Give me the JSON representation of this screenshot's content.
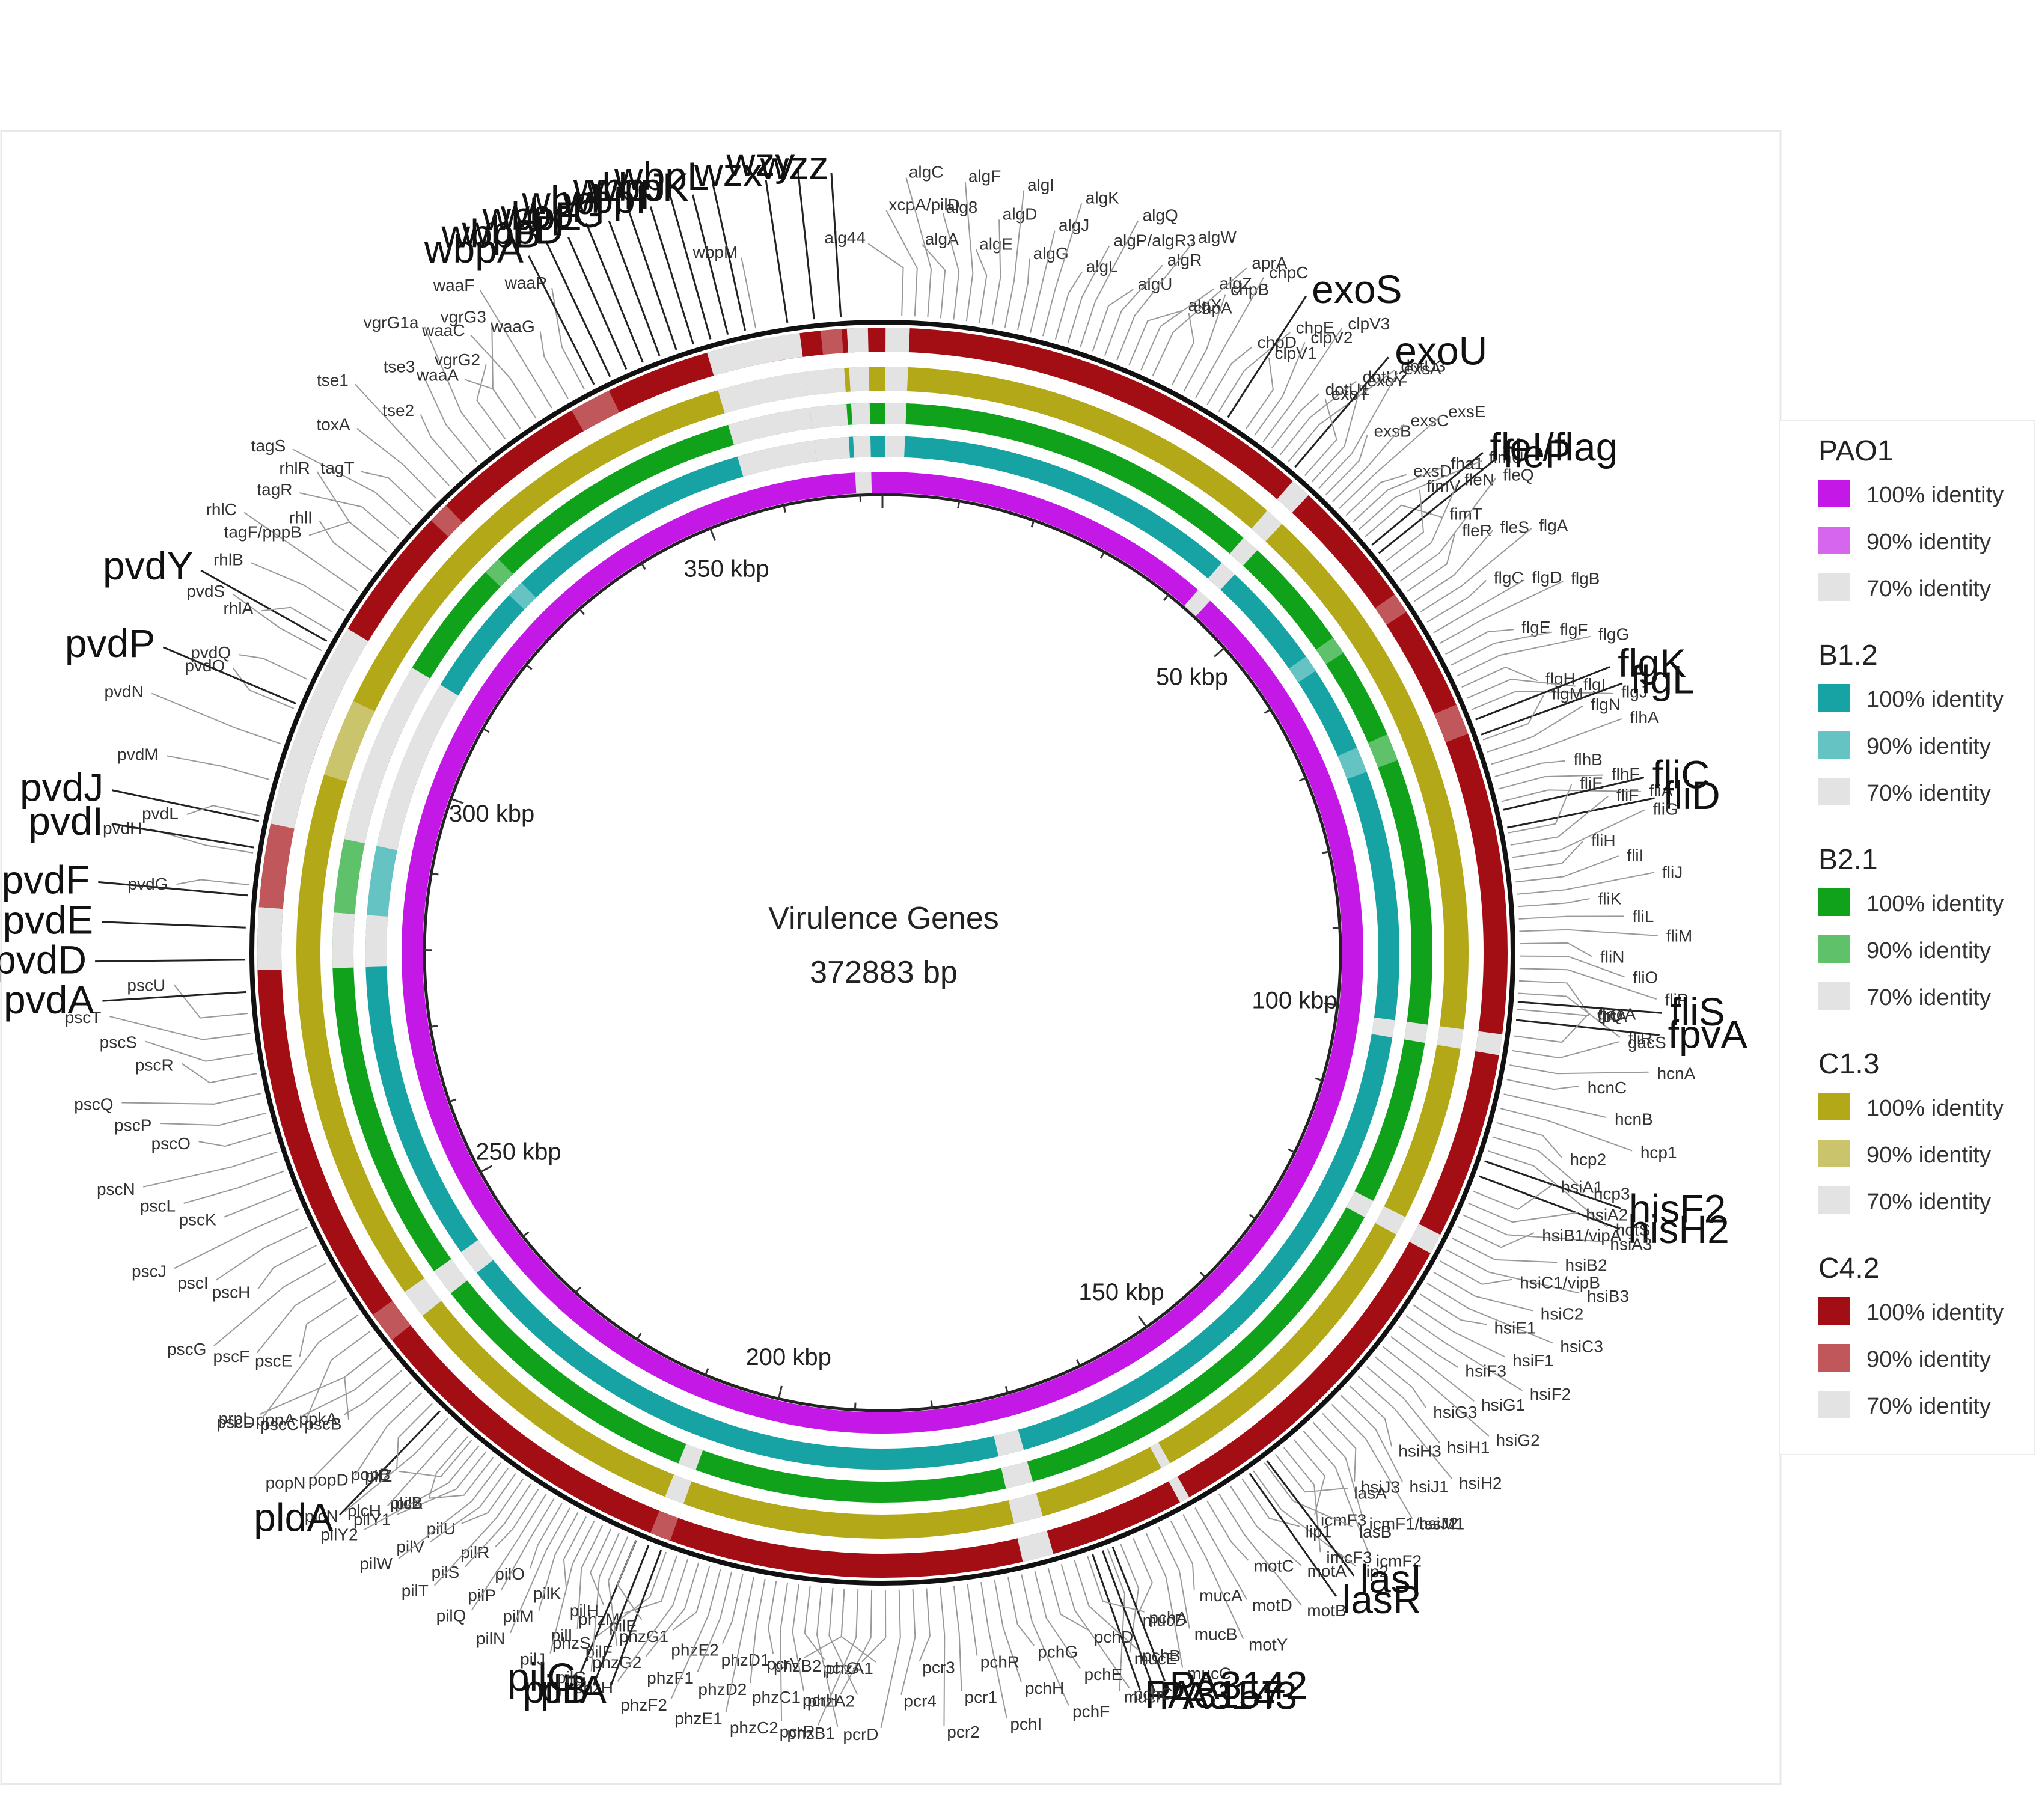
{
  "figure": {
    "center_title": "Virulence Genes",
    "center_subtitle": "372883 bp",
    "genome_length_bp": 372883
  },
  "axis_labels": [
    {
      "kbp": 50,
      "text": "50 kbp"
    },
    {
      "kbp": 100,
      "text": "100 kbp"
    },
    {
      "kbp": 150,
      "text": "150 kbp"
    },
    {
      "kbp": 200,
      "text": "200 kbp"
    },
    {
      "kbp": 250,
      "text": "250 kbp"
    },
    {
      "kbp": 300,
      "text": "300 kbp"
    },
    {
      "kbp": 350,
      "text": "350 kbp"
    }
  ],
  "rings": [
    {
      "name": "C4.2",
      "color": "#a30e14",
      "color90": "#c0575a"
    },
    {
      "name": "C1.3",
      "color": "#b2a818",
      "color90": "#cac46c"
    },
    {
      "name": "B2.1",
      "color": "#10a21b",
      "color90": "#5fc26a"
    },
    {
      "name": "B1.2",
      "color": "#17a3a3",
      "color90": "#66c3c3"
    },
    {
      "name": "PAO1",
      "color": "#c318e6",
      "color90": "#d766ee"
    }
  ],
  "gaps": [
    {
      "ring": "C4.2",
      "start": 0.3,
      "end": 2.6,
      "level": "70"
    },
    {
      "ring": "C1.3",
      "start": 0.3,
      "end": 2.6,
      "level": "70"
    },
    {
      "ring": "B2.1",
      "start": 0.3,
      "end": 2.6,
      "level": "70"
    },
    {
      "ring": "B1.2",
      "start": 0.3,
      "end": 2.6,
      "level": "70"
    },
    {
      "ring": "C4.2",
      "start": 42.5,
      "end": 44.5,
      "level": "70"
    },
    {
      "ring": "C1.3",
      "start": 42.5,
      "end": 44.5,
      "level": "70"
    },
    {
      "ring": "B2.1",
      "start": 42.5,
      "end": 44.5,
      "level": "70"
    },
    {
      "ring": "B1.2",
      "start": 42.5,
      "end": 44.5,
      "level": "70"
    },
    {
      "ring": "PAO1",
      "start": 42.5,
      "end": 44.5,
      "level": "70"
    },
    {
      "ring": "C4.2",
      "start": 57,
      "end": 59,
      "level": "90"
    },
    {
      "ring": "B2.1",
      "start": 57,
      "end": 59,
      "level": "90"
    },
    {
      "ring": "B1.2",
      "start": 57,
      "end": 59,
      "level": "90"
    },
    {
      "ring": "C4.2",
      "start": 69,
      "end": 72,
      "level": "90"
    },
    {
      "ring": "B2.1",
      "start": 69,
      "end": 72,
      "level": "90"
    },
    {
      "ring": "B1.2",
      "start": 69,
      "end": 72,
      "level": "90"
    },
    {
      "ring": "C4.2",
      "start": 101,
      "end": 103,
      "level": "70"
    },
    {
      "ring": "C1.3",
      "start": 101,
      "end": 103,
      "level": "70"
    },
    {
      "ring": "B2.1",
      "start": 101,
      "end": 103,
      "level": "70"
    },
    {
      "ring": "B1.2",
      "start": 101,
      "end": 103,
      "level": "70"
    },
    {
      "ring": "C4.2",
      "start": 121,
      "end": 123,
      "level": "70"
    },
    {
      "ring": "C1.3",
      "start": 121,
      "end": 123,
      "level": "70"
    },
    {
      "ring": "B2.1",
      "start": 121,
      "end": 123,
      "level": "70"
    },
    {
      "ring": "C4.2",
      "start": 156,
      "end": 157,
      "level": "70"
    },
    {
      "ring": "C1.3",
      "start": 156,
      "end": 157,
      "level": "70"
    },
    {
      "ring": "C4.2",
      "start": 170,
      "end": 173,
      "level": "70"
    },
    {
      "ring": "C1.3",
      "start": 170,
      "end": 173,
      "level": "70"
    },
    {
      "ring": "B2.1",
      "start": 170,
      "end": 173,
      "level": "70"
    },
    {
      "ring": "B1.2",
      "start": 170,
      "end": 173,
      "level": "70"
    },
    {
      "ring": "C4.2",
      "start": 207,
      "end": 209,
      "level": "90"
    },
    {
      "ring": "C1.3",
      "start": 207,
      "end": 209,
      "level": "70"
    },
    {
      "ring": "B2.1",
      "start": 207,
      "end": 209,
      "level": "70"
    },
    {
      "ring": "C4.2",
      "start": 240,
      "end": 243,
      "level": "90"
    },
    {
      "ring": "C1.3",
      "start": 240,
      "end": 243,
      "level": "70"
    },
    {
      "ring": "B2.1",
      "start": 240,
      "end": 243,
      "level": "70"
    },
    {
      "ring": "B1.2",
      "start": 240,
      "end": 243,
      "level": "70"
    },
    {
      "ring": "C4.2",
      "start": 278,
      "end": 284,
      "level": "70"
    },
    {
      "ring": "B2.1",
      "start": 278,
      "end": 284,
      "level": "70"
    },
    {
      "ring": "B1.2",
      "start": 278,
      "end": 284,
      "level": "70"
    },
    {
      "ring": "C4.2",
      "start": 284,
      "end": 292,
      "level": "90"
    },
    {
      "ring": "B2.1",
      "start": 284,
      "end": 292,
      "level": "90"
    },
    {
      "ring": "B1.2",
      "start": 284,
      "end": 292,
      "level": "90"
    },
    {
      "ring": "C4.2",
      "start": 292,
      "end": 312,
      "level": "70"
    },
    {
      "ring": "B2.1",
      "start": 292,
      "end": 312,
      "level": "70"
    },
    {
      "ring": "B1.2",
      "start": 292,
      "end": 312,
      "level": "70"
    },
    {
      "ring": "C1.3",
      "start": 298,
      "end": 306,
      "level": "90"
    },
    {
      "ring": "C4.2",
      "start": 325,
      "end": 327,
      "level": "90"
    },
    {
      "ring": "B2.1",
      "start": 325,
      "end": 327,
      "level": "90"
    },
    {
      "ring": "B1.2",
      "start": 325,
      "end": 327,
      "level": "90"
    },
    {
      "ring": "C4.2",
      "start": 342,
      "end": 346,
      "level": "90"
    },
    {
      "ring": "C4.2",
      "start": 356,
      "end": 365,
      "level": "70"
    },
    {
      "ring": "C1.3",
      "start": 356,
      "end": 365,
      "level": "70"
    },
    {
      "ring": "B2.1",
      "start": 356,
      "end": 365,
      "level": "70"
    },
    {
      "ring": "B1.2",
      "start": 356,
      "end": 365,
      "level": "70"
    },
    {
      "ring": "C4.2",
      "start": 367,
      "end": 369,
      "level": "90"
    },
    {
      "ring": "C1.3",
      "start": 365,
      "end": 369,
      "level": "70"
    },
    {
      "ring": "B2.1",
      "start": 365,
      "end": 369,
      "level": "70"
    },
    {
      "ring": "B1.2",
      "start": 365,
      "end": 369,
      "level": "70"
    },
    {
      "ring": "C4.2",
      "start": 369.5,
      "end": 371.5,
      "level": "70"
    },
    {
      "ring": "C1.3",
      "start": 369.5,
      "end": 371.5,
      "level": "70"
    },
    {
      "ring": "B2.1",
      "start": 369.5,
      "end": 371.5,
      "level": "70"
    },
    {
      "ring": "B1.2",
      "start": 369.5,
      "end": 371.5,
      "level": "70"
    },
    {
      "ring": "PAO1",
      "start": 369.5,
      "end": 371.5,
      "level": "70"
    }
  ],
  "legend": [
    {
      "title": "PAO1",
      "entries": [
        {
          "label": "100% identity",
          "color": "#c318e6"
        },
        {
          "label": "90% identity",
          "color": "#d766ee"
        },
        {
          "label": "70% identity",
          "color": "#e3e3e3"
        }
      ]
    },
    {
      "title": "B1.2",
      "entries": [
        {
          "label": "100% identity",
          "color": "#17a3a3"
        },
        {
          "label": "90% identity",
          "color": "#66c3c3"
        },
        {
          "label": "70% identity",
          "color": "#e3e3e3"
        }
      ]
    },
    {
      "title": "B2.1",
      "entries": [
        {
          "label": "100% identity",
          "color": "#10a21b"
        },
        {
          "label": "90% identity",
          "color": "#5fc26a"
        },
        {
          "label": "70% identity",
          "color": "#e3e3e3"
        }
      ]
    },
    {
      "title": "C1.3",
      "entries": [
        {
          "label": "100% identity",
          "color": "#b2a818"
        },
        {
          "label": "90% identity",
          "color": "#cac46c"
        },
        {
          "label": "70% identity",
          "color": "#e3e3e3"
        }
      ]
    },
    {
      "title": "C4.2",
      "entries": [
        {
          "label": "100% identity",
          "color": "#a30e14"
        },
        {
          "label": "90% identity",
          "color": "#c0575a"
        },
        {
          "label": "70% identity",
          "color": "#e3e3e3"
        }
      ]
    }
  ],
  "gene_groups": [
    {
      "genes": [
        "alg44",
        "xcpA/pilD",
        "algC",
        "algA",
        "alg8",
        "algF",
        "algE",
        "algD",
        "algI",
        "algG",
        "algJ",
        "algK",
        "algL",
        "algP/algR3",
        "algQ",
        "algU",
        "algR",
        "algW",
        "algX",
        "algZ",
        "aprA"
      ],
      "start": 1.8,
      "end": 26
    },
    {
      "genes": [
        "chpA",
        "chpB",
        "chpC",
        "chpD",
        "chpE"
      ],
      "start": 28,
      "end": 33
    },
    {
      "genes": [
        "exoS"
      ],
      "start": 34,
      "end": 34,
      "big": true
    },
    {
      "genes": [
        "clpV1",
        "clpV2",
        "clpV3",
        "dotU1",
        "dotU2",
        "dotU3"
      ],
      "start": 36,
      "end": 41
    },
    {
      "genes": [
        "exoU"
      ],
      "start": 41.8,
      "end": 41.8,
      "big": true
    },
    {
      "genes": [
        "exoT",
        "exoY",
        "exsA",
        "exsB",
        "exsC",
        "exsE",
        "exsD",
        "fha1",
        "fimU",
        "fimT"
      ],
      "start": 43,
      "end": 51
    },
    {
      "genes": [
        "fleI/flag",
        "fleP"
      ],
      "start": 52,
      "end": 53,
      "big": true
    },
    {
      "genes": [
        "fimV",
        "fleN",
        "fleQ",
        "fleR",
        "fleS",
        "flgA",
        "flgC",
        "flgD",
        "flgB",
        "flgE",
        "flgF",
        "flgG",
        "flgH",
        "flgI",
        "flgJ"
      ],
      "start": 54,
      "end": 70
    },
    {
      "genes": [
        "flgK",
        "flgL"
      ],
      "start": 71,
      "end": 72.5,
      "big": true
    },
    {
      "genes": [
        "flgM",
        "flgN",
        "flhA",
        "flhB",
        "flhF",
        "fliA"
      ],
      "start": 73,
      "end": 79
    },
    {
      "genes": [
        "fliC",
        "fliD"
      ],
      "start": 79.8,
      "end": 81.5,
      "big": true
    },
    {
      "genes": [
        "fliE",
        "fliF",
        "fliG",
        "fliH",
        "fliI",
        "fliJ",
        "fliK",
        "fliL",
        "fliM",
        "fliN",
        "fliO",
        "fliP",
        "fliQ",
        "fliR"
      ],
      "start": 82,
      "end": 97
    },
    {
      "genes": [
        "fliS"
      ],
      "start": 97.8,
      "end": 97.8,
      "big": true
    },
    {
      "genes": [
        "fptA"
      ],
      "start": 98.5,
      "end": 98.5
    },
    {
      "genes": [
        "fpvA"
      ],
      "start": 99.5,
      "end": 99.5,
      "big": true
    },
    {
      "genes": [
        "gacA",
        "gacS",
        "hcnA",
        "hcnC",
        "hcnB",
        "hcp1",
        "hcp2",
        "hcp3",
        "hdtS"
      ],
      "start": 101,
      "end": 112
    },
    {
      "genes": [
        "hisF2",
        "hisH2"
      ],
      "start": 113,
      "end": 114.5,
      "big": true
    },
    {
      "genes": [
        "hsiA1",
        "hsiA2",
        "hsiA3",
        "hsiB1/vipA",
        "hsiB2",
        "hsiB3",
        "hsiC1/vipB",
        "hsiC2",
        "hsiC3",
        "hsiE1",
        "hsiF1",
        "hsiF2",
        "hsiF3",
        "hsiG1",
        "hsiG2",
        "hsiG3",
        "hsiH1",
        "hsiH2",
        "hsiH3",
        "hsiJ1",
        "hsiJ2",
        "hsiJ3",
        "icmF1/tssM1",
        "icmF2",
        "icmF3",
        "imcF3"
      ],
      "start": 116,
      "end": 146
    },
    {
      "genes": [
        "lasA",
        "lasB",
        "lip2",
        "lip1",
        "motA",
        "motB",
        "motC",
        "motD",
        "motY",
        "mucA",
        "mucB",
        "mucC",
        "mucD",
        "mucE",
        "mucP"
      ],
      "start": 147,
      "end": 165
    },
    {
      "genes": [
        "lasI",
        "lasR"
      ],
      "start": 148,
      "end": 150,
      "big": true
    },
    {
      "genes": [
        "PA3142",
        "PA3143",
        "PA3157"
      ],
      "start": 164.5,
      "end": 166.5,
      "big": true
    },
    {
      "genes": [
        "pchA",
        "pchB",
        "pchC",
        "pchD",
        "pchE",
        "pchF",
        "pchG",
        "pchH",
        "pchI",
        "pchR",
        "pcr1",
        "pcr2",
        "pcr3",
        "pcr4",
        "pcrD",
        "pcrG",
        "pcrH",
        "pcrR",
        "pcrV"
      ],
      "start": 167,
      "end": 190
    },
    {
      "genes": [
        "phzA1",
        "phzA2",
        "phzB1",
        "phzB2",
        "phzC1",
        "phzC2",
        "phzD1",
        "phzD2",
        "phzE1",
        "phzE2",
        "phzF1",
        "phzF2",
        "phzG1",
        "phzG2",
        "phzH",
        "phzM",
        "phzS"
      ],
      "start": 190,
      "end": 207
    },
    {
      "genes": [
        "pilA",
        "pilB",
        "pilC"
      ],
      "start": 207.5,
      "end": 210,
      "big": true
    },
    {
      "genes": [
        "pilE",
        "pilF",
        "pilG",
        "pilH",
        "pilI",
        "pilJ",
        "pilK",
        "pilM",
        "pilN",
        "pilO",
        "pilP",
        "pilQ",
        "pilR",
        "pilS",
        "pilT",
        "pilU",
        "pilV",
        "pilW",
        "pilX",
        "pilY1",
        "pilY2",
        "pilZ"
      ],
      "start": 210,
      "end": 228
    },
    {
      "genes": [
        "plcB",
        "plcH",
        "plcN"
      ],
      "start": 228.5,
      "end": 231
    },
    {
      "genes": [
        "pldA"
      ],
      "start": 232,
      "end": 232,
      "big": true
    },
    {
      "genes": [
        "popB",
        "popD",
        "popN",
        "ppkA",
        "pppA",
        "prpL"
      ],
      "start": 233,
      "end": 240
    },
    {
      "genes": [
        "pscB",
        "pscC",
        "pscD",
        "pscE",
        "pscF",
        "pscG",
        "pscH",
        "pscI",
        "pscJ",
        "pscK",
        "pscL",
        "pscN",
        "pscO",
        "pscP",
        "pscQ",
        "pscR",
        "pscS",
        "pscT",
        "pscU"
      ],
      "start": 240,
      "end": 274
    },
    {
      "genes": [
        "pvdA",
        "pvdD",
        "pvdE",
        "pvdF"
      ],
      "start": 276,
      "end": 285,
      "big": true
    },
    {
      "genes": [
        "pvdG",
        "pvdH"
      ],
      "start": 286,
      "end": 289
    },
    {
      "genes": [
        "pvdI",
        "pvdJ"
      ],
      "start": 289.5,
      "end": 292,
      "big": true
    },
    {
      "genes": [
        "pvdL",
        "pvdM",
        "pvdN",
        "pvdO"
      ],
      "start": 292.5,
      "end": 303
    },
    {
      "genes": [
        "pvdP"
      ],
      "start": 303.5,
      "end": 303.5,
      "big": true
    },
    {
      "genes": [
        "pvdQ",
        "pvdS"
      ],
      "start": 306,
      "end": 309
    },
    {
      "genes": [
        "pvdY"
      ],
      "start": 310,
      "end": 310,
      "big": true
    },
    {
      "genes": [
        "rhlA",
        "rhlB",
        "rhlC",
        "rhlI",
        "rhlR"
      ],
      "start": 311,
      "end": 320
    },
    {
      "genes": [
        "tagF/pppB",
        "tagR",
        "tagS",
        "tagT",
        "toxA",
        "tse1",
        "tse2",
        "tse3",
        "vgrG1a",
        "vgrG2",
        "vgrG3"
      ],
      "start": 320,
      "end": 337
    },
    {
      "genes": [
        "waaA",
        "waaC",
        "waaF",
        "waaG",
        "waaP"
      ],
      "start": 337,
      "end": 344
    },
    {
      "genes": [
        "wbpA",
        "wbpB",
        "wbpD",
        "wbpE",
        "wbpG",
        "wbpH",
        "wbpI",
        "wbpJ",
        "wbpK",
        "wbpL"
      ],
      "start": 345,
      "end": 360,
      "big": true
    },
    {
      "genes": [
        "wbpM"
      ],
      "start": 361,
      "end": 361
    },
    {
      "genes": [
        "wzx",
        "wzy",
        "wzz"
      ],
      "start": 364,
      "end": 369,
      "big": true
    }
  ]
}
